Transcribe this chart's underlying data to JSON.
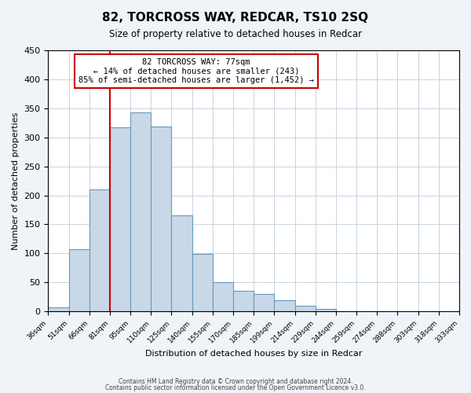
{
  "title": "82, TORCROSS WAY, REDCAR, TS10 2SQ",
  "subtitle": "Size of property relative to detached houses in Redcar",
  "xlabel": "Distribution of detached houses by size in Redcar",
  "ylabel": "Number of detached properties",
  "bin_labels": [
    "36sqm",
    "51sqm",
    "66sqm",
    "81sqm",
    "95sqm",
    "110sqm",
    "125sqm",
    "140sqm",
    "155sqm",
    "170sqm",
    "185sqm",
    "199sqm",
    "214sqm",
    "229sqm",
    "244sqm",
    "259sqm",
    "274sqm",
    "288sqm",
    "303sqm",
    "318sqm",
    "333sqm"
  ],
  "bar_values": [
    7,
    107,
    210,
    317,
    343,
    319,
    166,
    99,
    50,
    35,
    30,
    19,
    10,
    5,
    1,
    0,
    0,
    0,
    0,
    0
  ],
  "bar_color": "#c8d8e8",
  "bar_edge_color": "#6699bb",
  "vline_x": 3,
  "vline_color": "#cc0000",
  "annotation_line1": "82 TORCROSS WAY: 77sqm",
  "annotation_line2": "← 14% of detached houses are smaller (243)",
  "annotation_line3": "85% of semi-detached houses are larger (1,452) →",
  "annotation_box_color": "#ffffff",
  "annotation_box_edge_color": "#cc0000",
  "ylim": [
    0,
    450
  ],
  "yticks": [
    0,
    50,
    100,
    150,
    200,
    250,
    300,
    350,
    400,
    450
  ],
  "footer_line1": "Contains HM Land Registry data © Crown copyright and database right 2024.",
  "footer_line2": "Contains public sector information licensed under the Open Government Licence v3.0.",
  "background_color": "#f0f4f8",
  "plot_background_color": "#ffffff",
  "grid_color": "#c8d4e0"
}
